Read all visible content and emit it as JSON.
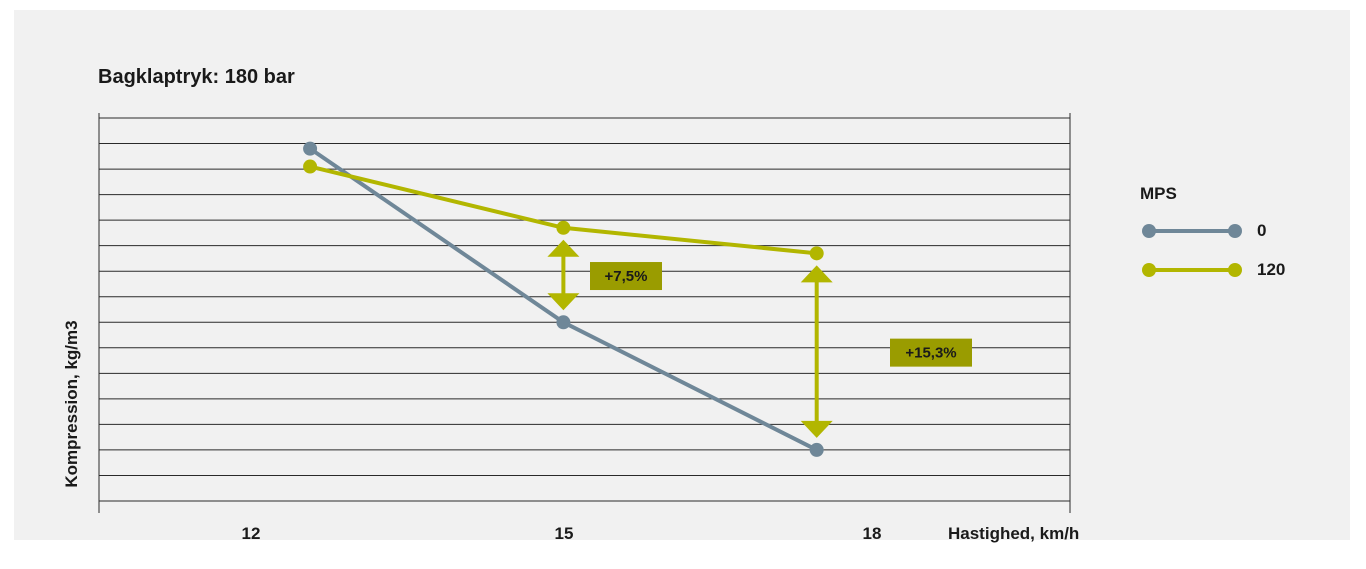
{
  "chart_data": {
    "type": "line",
    "title": "Bagklaptryk: 180 bar",
    "xlabel": "Hastighed, km/h",
    "ylabel": "Kompression, kg/m3",
    "x": [
      12,
      15,
      18
    ],
    "xlim": [
      9.5,
      21
    ],
    "ylim": [
      0,
      15
    ],
    "grid": true,
    "legend": {
      "title": "MPS",
      "position": "right"
    },
    "series": [
      {
        "name": "0",
        "color": "#6f8798",
        "values": [
          13.8,
          7.0,
          2.0
        ]
      },
      {
        "name": "120",
        "color": "#b2b600",
        "values": [
          13.1,
          10.7,
          9.7
        ]
      }
    ],
    "annotations": [
      {
        "x": 15,
        "label": "+7,5%"
      },
      {
        "x": 18,
        "label": "+15,3%"
      }
    ]
  }
}
